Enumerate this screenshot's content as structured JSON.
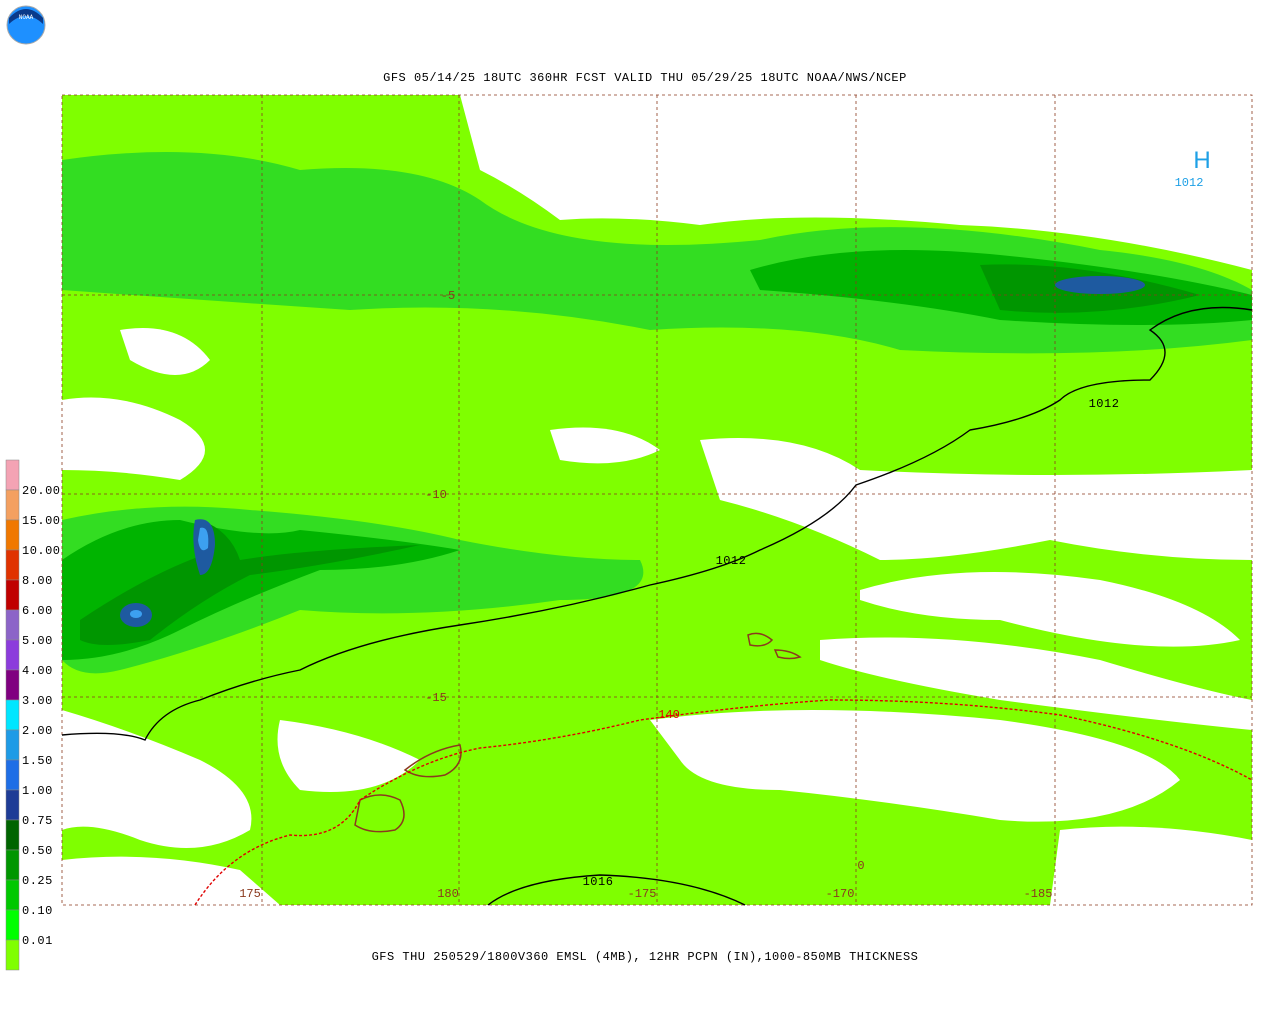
{
  "header": {
    "title": "GFS 05/14/25 18UTC 360HR FCST VALID THU 05/29/25 18UTC NOAA/NWS/NCEP",
    "logo": "NOAA"
  },
  "footer": {
    "caption": "GFS THU 250529/1800V360 EMSL (4MB), 12HR PCPN (IN),1000-850MB THICKNESS"
  },
  "legend": {
    "labels": [
      "20.00",
      "15.00",
      "10.00",
      "8.00",
      "6.00",
      "5.00",
      "4.00",
      "3.00",
      "2.00",
      "1.50",
      "1.00",
      "0.75",
      "0.50",
      "0.25",
      "0.10",
      "0.01"
    ]
  },
  "map": {
    "lat_labels": [
      "-5",
      "-10",
      "-15"
    ],
    "lon_labels": [
      "175",
      "180",
      "-175",
      "-170",
      "-185"
    ],
    "isobar_labels": [
      "1012",
      "1012",
      "1012",
      "1016"
    ],
    "thickness_labels": [
      "140",
      "0"
    ],
    "high": {
      "symbol": "H",
      "pressure": "1012"
    }
  }
}
